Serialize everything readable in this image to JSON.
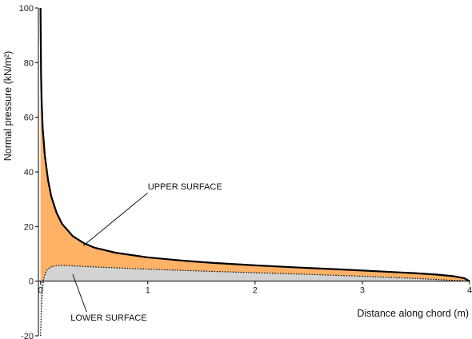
{
  "chart_data": {
    "type": "area",
    "title": "",
    "xlabel": "Distance along chord (m)",
    "ylabel": "Normal pressure (kN/m²)",
    "xlim": [
      -0.02,
      4
    ],
    "ylim": [
      -20,
      100
    ],
    "x_ticks": [
      0,
      1,
      2,
      3,
      4
    ],
    "x_tick_labels": [
      "0",
      "1",
      "2",
      "3",
      "4"
    ],
    "y_ticks": [
      -20,
      0,
      20,
      40,
      60,
      80,
      100
    ],
    "y_tick_labels": [
      "-20",
      "0",
      "20",
      "40",
      "60",
      "80",
      "100"
    ],
    "grid": false,
    "series": [
      {
        "name": "UPPER SURFACE",
        "fill": "#ffb266",
        "line": "#000000",
        "x": [
          0,
          0.005,
          0.01,
          0.02,
          0.04,
          0.07,
          0.1,
          0.15,
          0.2,
          0.3,
          0.4,
          0.5,
          0.7,
          1.0,
          1.3,
          1.6,
          2.0,
          2.4,
          2.8,
          3.2,
          3.5,
          3.7,
          3.85,
          3.95,
          4.0
        ],
        "values": [
          100,
          75,
          66,
          56,
          46,
          37,
          31,
          25,
          21,
          16.5,
          14,
          12.3,
          10.4,
          8.7,
          7.6,
          6.7,
          5.8,
          5.0,
          4.3,
          3.5,
          2.9,
          2.4,
          1.8,
          1.1,
          0
        ]
      },
      {
        "name": "LOWER SURFACE",
        "fill": "#d3d3d3",
        "line": "#000000",
        "x": [
          0,
          0.005,
          0.01,
          0.02,
          0.03,
          0.05,
          0.07,
          0.1,
          0.15,
          0.2,
          0.3,
          0.5,
          1.0,
          1.5,
          2.0,
          2.5,
          3.0,
          3.5,
          3.8,
          4.0
        ],
        "values": [
          -20,
          -14,
          -8,
          -2,
          1,
          3.5,
          4.5,
          5.2,
          5.7,
          5.8,
          5.6,
          5.2,
          4.4,
          3.7,
          3.1,
          2.5,
          1.8,
          1.0,
          0.4,
          0
        ]
      }
    ],
    "annotations": [
      {
        "text": "UPPER SURFACE",
        "series": "UPPER SURFACE",
        "point_x": 0.4,
        "point_y": 13.0,
        "text_x": 1.0,
        "text_y": 33.5
      },
      {
        "text": "LOWER SURFACE",
        "series": "LOWER SURFACE",
        "point_x": 0.3,
        "point_y": 2.5,
        "text_x": 0.28,
        "text_y": -14.5
      }
    ]
  }
}
